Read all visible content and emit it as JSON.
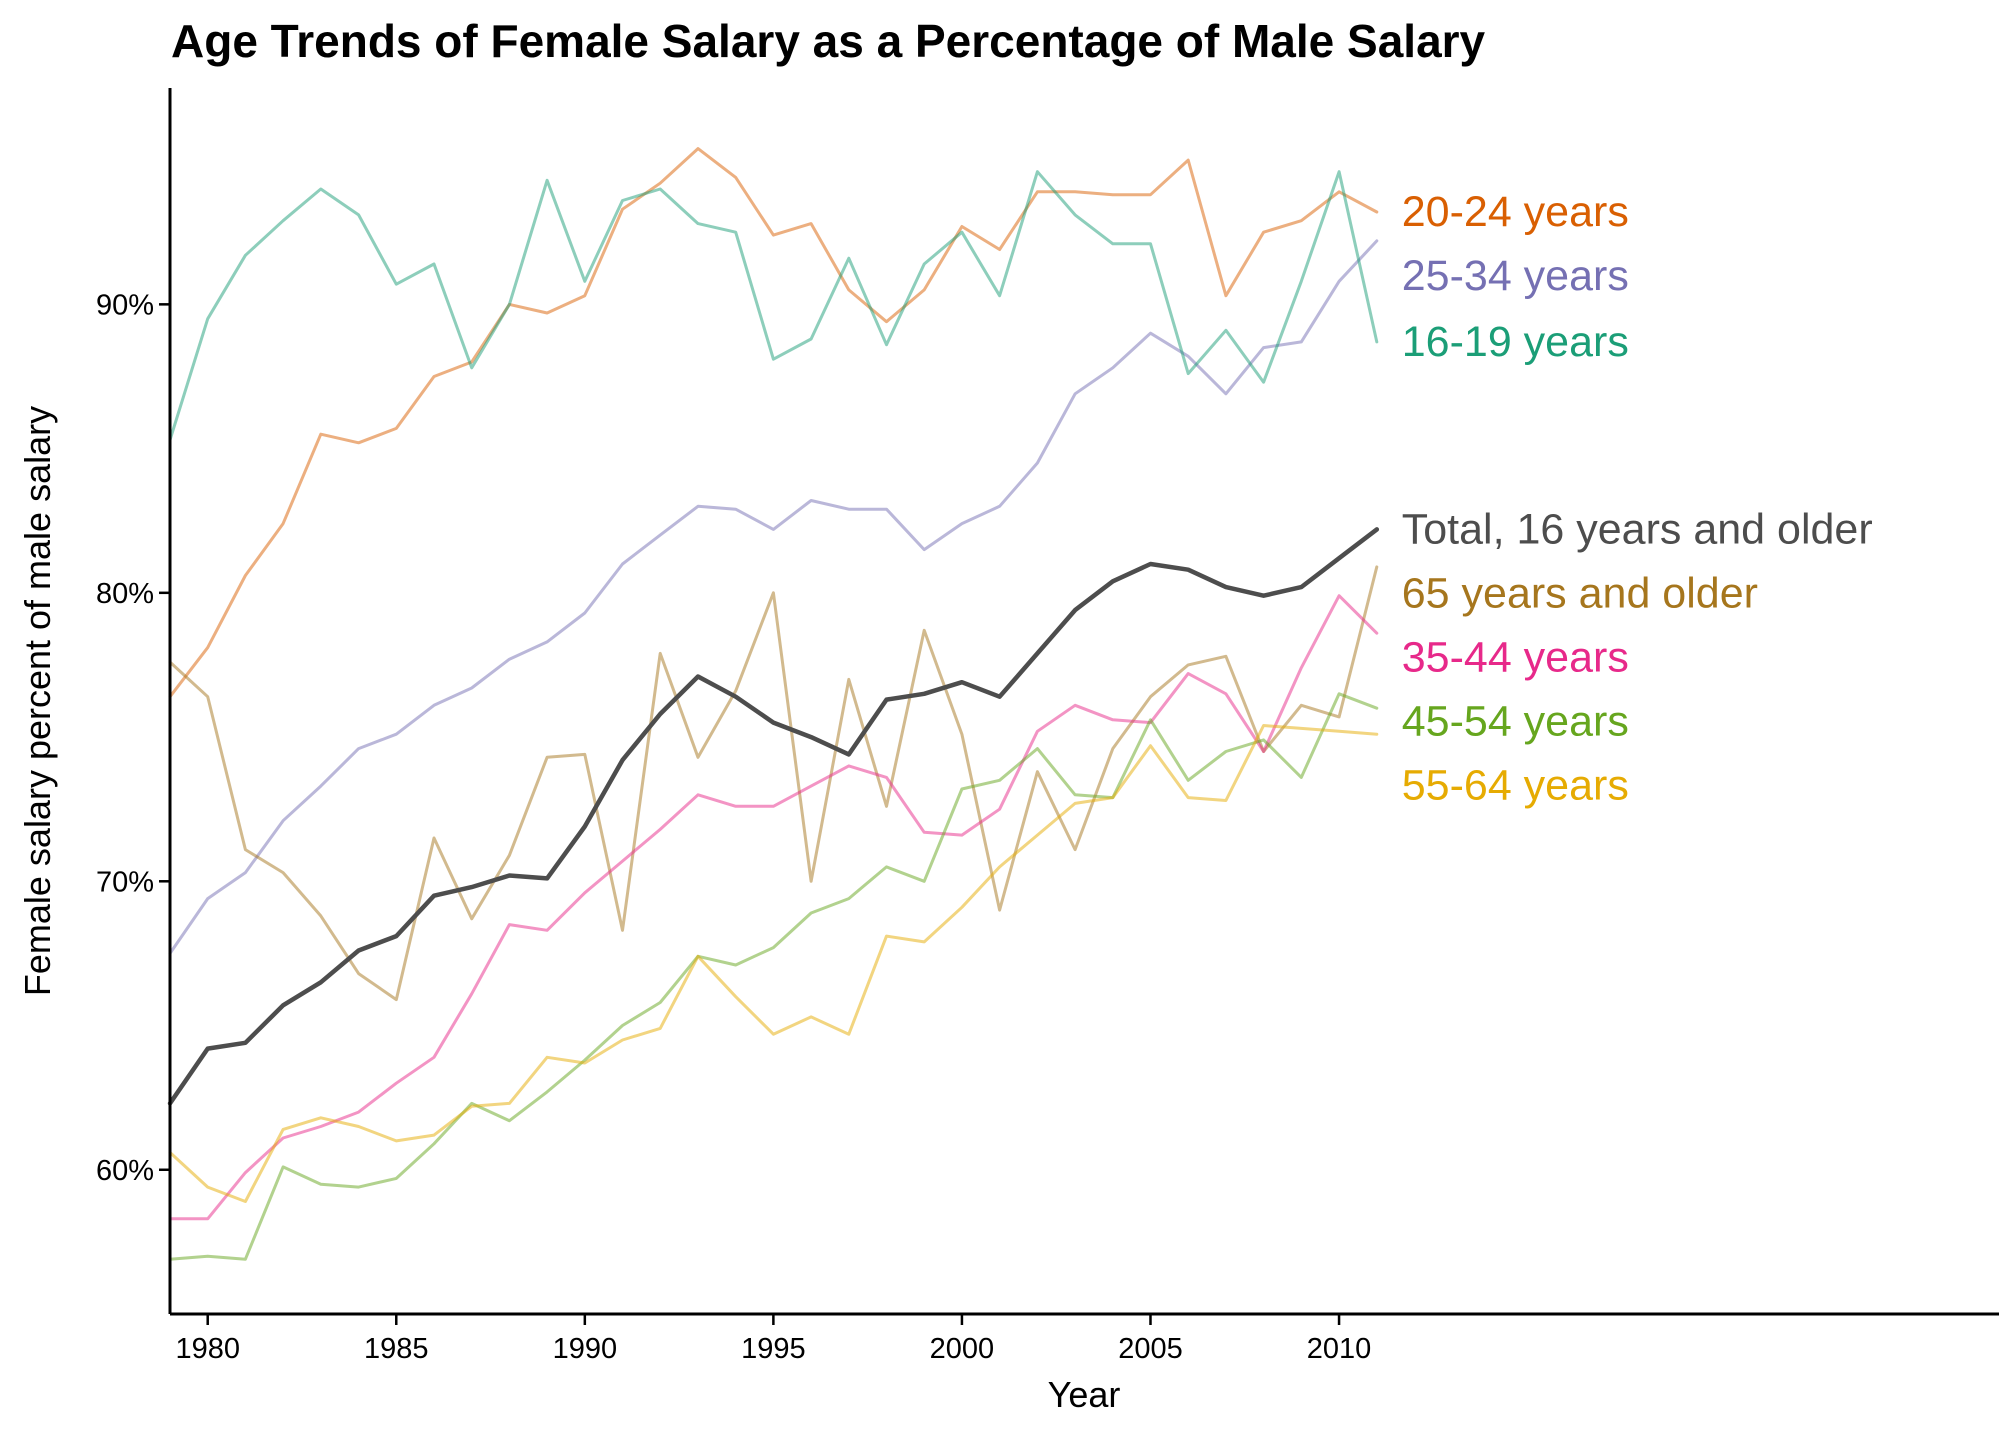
{
  "chart_data": {
    "type": "line",
    "title": "Age Trends of Female Salary as a Percentage of Male Salary",
    "xlabel": "Year",
    "ylabel": "Female salary percent of male salary",
    "x": [
      1979,
      1980,
      1981,
      1982,
      1983,
      1984,
      1985,
      1986,
      1987,
      1988,
      1989,
      1990,
      1991,
      1992,
      1993,
      1994,
      1995,
      1996,
      1997,
      1998,
      1999,
      2000,
      2001,
      2002,
      2003,
      2004,
      2005,
      2006,
      2007,
      2008,
      2009,
      2010,
      2011
    ],
    "xlim": [
      1979,
      2027.5
    ],
    "ylim": [
      55,
      97.5
    ],
    "x_ticks": [
      1980,
      1985,
      1990,
      1995,
      2000,
      2005,
      2010
    ],
    "x_tick_labels": [
      "1980",
      "1985",
      "1990",
      "1995",
      "2000",
      "2005",
      "2010"
    ],
    "y_ticks": [
      60,
      70,
      80,
      90
    ],
    "y_tick_labels": [
      "60%",
      "70%",
      "80%",
      "90%"
    ],
    "grid": false,
    "legend": "direct labels at right end of lines",
    "series": [
      {
        "name": "20-24 years",
        "color": "#d95f02",
        "opacity": 0.5,
        "emphasis": false,
        "values": [
          76.4,
          78.1,
          80.6,
          82.4,
          85.5,
          85.2,
          85.7,
          87.5,
          88.0,
          90.0,
          89.7,
          90.3,
          93.3,
          94.2,
          95.4,
          94.4,
          92.4,
          92.8,
          90.5,
          89.4,
          90.5,
          92.7,
          91.9,
          93.9,
          93.9,
          93.8,
          93.8,
          95.0,
          90.3,
          92.5,
          92.9,
          93.9,
          93.2
        ]
      },
      {
        "name": "25-34 years",
        "color": "#7570b3",
        "opacity": 0.5,
        "emphasis": false,
        "values": [
          67.5,
          69.4,
          70.3,
          72.1,
          73.3,
          74.6,
          75.1,
          76.1,
          76.7,
          77.7,
          78.3,
          79.3,
          81.0,
          82.0,
          83.0,
          82.9,
          82.2,
          83.2,
          82.9,
          82.9,
          81.5,
          82.4,
          83.0,
          84.5,
          86.9,
          87.8,
          89.0,
          88.2,
          86.9,
          88.5,
          88.7,
          90.8,
          92.2
        ]
      },
      {
        "name": "16-19 years",
        "color": "#1b9e77",
        "opacity": 0.5,
        "emphasis": false,
        "values": [
          85.3,
          89.5,
          91.7,
          92.9,
          94.0,
          93.1,
          90.7,
          91.4,
          87.8,
          90.0,
          94.3,
          90.8,
          93.6,
          94.0,
          92.8,
          92.5,
          88.1,
          88.8,
          91.6,
          88.6,
          91.4,
          92.5,
          90.3,
          94.6,
          93.1,
          92.1,
          92.1,
          87.6,
          89.1,
          87.3,
          90.8,
          94.6,
          88.7
        ]
      },
      {
        "name": "Total, 16 years and older",
        "color": "#4d4d4d",
        "opacity": 1,
        "emphasis": true,
        "values": [
          62.3,
          64.2,
          64.4,
          65.7,
          66.5,
          67.6,
          68.1,
          69.5,
          69.8,
          70.2,
          70.1,
          71.9,
          74.2,
          75.8,
          77.1,
          76.4,
          75.5,
          75.0,
          74.4,
          76.3,
          76.5,
          76.9,
          76.4,
          77.9,
          79.4,
          80.4,
          81.0,
          80.8,
          80.2,
          79.9,
          80.2,
          81.2,
          82.2
        ]
      },
      {
        "name": "65 years and older",
        "color": "#a6761d",
        "opacity": 0.5,
        "emphasis": false,
        "values": [
          77.6,
          76.4,
          71.1,
          70.3,
          68.8,
          66.8,
          65.9,
          71.5,
          68.7,
          70.9,
          74.3,
          74.4,
          68.3,
          77.9,
          74.3,
          76.6,
          80.0,
          70.0,
          77.0,
          72.6,
          78.7,
          75.1,
          69.0,
          73.8,
          71.1,
          74.6,
          76.4,
          77.5,
          77.8,
          74.5,
          76.1,
          75.7,
          80.9
        ]
      },
      {
        "name": "35-44 years",
        "color": "#e7298a",
        "opacity": 0.5,
        "emphasis": false,
        "values": [
          58.3,
          58.3,
          59.9,
          61.1,
          61.5,
          62.0,
          63.0,
          63.9,
          66.1,
          68.5,
          68.3,
          69.6,
          70.7,
          71.8,
          73.0,
          72.6,
          72.6,
          73.3,
          74.0,
          73.6,
          71.7,
          71.6,
          72.5,
          75.2,
          76.1,
          75.6,
          75.5,
          77.2,
          76.5,
          74.5,
          77.4,
          79.9,
          78.6
        ]
      },
      {
        "name": "45-54 years",
        "color": "#66a61e",
        "opacity": 0.5,
        "emphasis": false,
        "values": [
          56.9,
          57.0,
          56.9,
          60.1,
          59.5,
          59.4,
          59.7,
          60.9,
          62.3,
          61.7,
          62.7,
          63.8,
          65.0,
          65.8,
          67.4,
          67.1,
          67.7,
          68.9,
          69.4,
          70.5,
          70.0,
          73.2,
          73.5,
          74.6,
          73.0,
          72.9,
          75.6,
          73.5,
          74.5,
          74.9,
          73.6,
          76.5,
          76.0
        ]
      },
      {
        "name": "55-64 years",
        "color": "#e6ab02",
        "opacity": 0.5,
        "emphasis": false,
        "values": [
          60.6,
          59.4,
          58.9,
          61.4,
          61.8,
          61.5,
          61.0,
          61.2,
          62.2,
          62.3,
          63.9,
          63.7,
          64.5,
          64.9,
          67.4,
          66.0,
          64.7,
          65.3,
          64.7,
          68.1,
          67.9,
          69.1,
          70.5,
          71.6,
          72.7,
          72.9,
          74.7,
          72.9,
          72.8,
          75.4,
          75.3,
          75.2,
          75.1
        ]
      }
    ]
  }
}
